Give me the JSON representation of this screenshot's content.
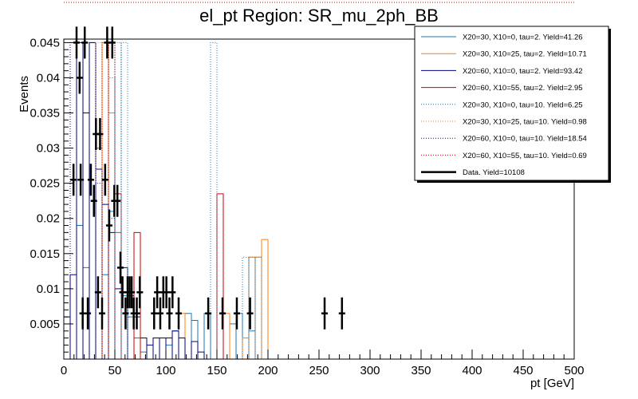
{
  "chart_data": {
    "type": "histogram",
    "title": "el_pt Region: SR_mu_2ph_BB",
    "xlabel": "pt [GeV]",
    "ylabel": "Events",
    "xlim": [
      0,
      500
    ],
    "ylim": [
      0,
      0.0455
    ],
    "bin_width": 6.25,
    "x_ticks": [
      "0",
      "50",
      "100",
      "150",
      "200",
      "250",
      "300",
      "350",
      "400",
      "450",
      "500"
    ],
    "y_ticks": [
      "0.005",
      "0.01",
      "0.015",
      "0.02",
      "0.025",
      "0.03",
      "0.035",
      "0.04",
      "0.045"
    ],
    "y_tick_values": [
      0.005,
      0.01,
      0.015,
      0.02,
      0.025,
      0.03,
      0.035,
      0.04,
      0.045
    ],
    "legend_position": "top-right",
    "series": [
      {
        "name": "X20=30, X10=0, tau=2. Yield=41.26",
        "color": "#1f77b4",
        "style": "solid",
        "points": [
          [
            12.5,
            0.019
          ],
          [
            18.75,
            0.013
          ],
          [
            31.25,
            0.03
          ],
          [
            37.5,
            0.012
          ],
          [
            43.75,
            0.021
          ],
          [
            50,
            0.018
          ],
          [
            56.25,
            0.009
          ],
          [
            62.5,
            0.006
          ],
          [
            68.75,
            0.003
          ],
          [
            75,
            0.001
          ],
          [
            100,
            0.002
          ],
          [
            106.25,
            0.004
          ],
          [
            118.75,
            0.0065
          ],
          [
            125,
            0.0055
          ],
          [
            137.5,
            0.0065
          ],
          [
            162.5,
            0.005
          ],
          [
            168.75,
            0.0065
          ],
          [
            181.25,
            0.004
          ]
        ]
      },
      {
        "name": "X20=30, X10=25, tau=2. Yield=10.71",
        "color": "#ff7f0e",
        "style": "solid",
        "points": [
          [
            37.5,
            0.045
          ],
          [
            43.75,
            0.035
          ],
          [
            112.5,
            0.0065
          ],
          [
            156.25,
            0.0065
          ],
          [
            175,
            0.003
          ],
          [
            181.25,
            0.0145
          ],
          [
            187.5,
            0.0145
          ],
          [
            193.75,
            0.017
          ]
        ]
      },
      {
        "name": "X20=60, X10=0, tau=2. Yield=93.42",
        "color": "#000080",
        "style": "solid",
        "points": [
          [
            0,
            0.006
          ],
          [
            6.25,
            0.012
          ],
          [
            12.5,
            0.045
          ],
          [
            18.75,
            0.035
          ],
          [
            25,
            0.045
          ],
          [
            31.25,
            0.027
          ],
          [
            37.5,
            0.022
          ],
          [
            43.75,
            0.018
          ],
          [
            50,
            0.01
          ],
          [
            56.25,
            0.013
          ],
          [
            62.5,
            0.009
          ],
          [
            68.75,
            0.006
          ],
          [
            75,
            0.003
          ],
          [
            81.25,
            0.002
          ],
          [
            87.5,
            0.003
          ],
          [
            93.75,
            0.003
          ],
          [
            100,
            0.003
          ],
          [
            106.25,
            0.004
          ],
          [
            112.5,
            0.003
          ],
          [
            125,
            0.0025
          ],
          [
            131.25,
            0.001
          ]
        ]
      },
      {
        "name": "X20=60, X10=55, tau=2. Yield=2.95",
        "color": "#cc0000",
        "style": "solid",
        "points": [
          [
            50,
            0.0235
          ],
          [
            68.75,
            0.018
          ],
          [
            150,
            0.0235
          ]
        ]
      },
      {
        "name": "X20=30, X10=0, tau=10. Yield=6.25",
        "color": "#1f77b4",
        "style": "dotted",
        "points": [
          [
            43.75,
            0.04
          ],
          [
            50,
            0.045
          ],
          [
            56.25,
            0.045
          ],
          [
            143.75,
            0.045
          ],
          [
            175,
            0.0145
          ],
          [
            181.25,
            0.0145
          ],
          [
            187.5,
            0.0145
          ]
        ]
      },
      {
        "name": "X20=30, X10=25, tau=10. Yield=0.98",
        "color": "#ff7f0e",
        "style": "dotted",
        "points": [
          [
            31.25,
            0.045
          ],
          [
            37.5,
            0.045
          ]
        ]
      },
      {
        "name": "X20=60, X10=0, tau=10. Yield=18.54",
        "color": "#000080",
        "style": "dotted",
        "points": [
          [
            6.25,
            0.045
          ],
          [
            12.5,
            0.045
          ],
          [
            18.75,
            0.045
          ],
          [
            25,
            0.045
          ],
          [
            31.25,
            0.025
          ],
          [
            37.5,
            0.045
          ],
          [
            43.75,
            0.02
          ]
        ]
      },
      {
        "name": "X20=60, X10=55, tau=10. Yield=0.69",
        "color": "#cc0000",
        "style": "dotted",
        "points": [
          [
            37.5,
            0.045
          ],
          [
            43.75,
            0.045
          ]
        ]
      }
    ],
    "data_series": {
      "name": "Data. Yield=10108",
      "color": "#000000",
      "points": [
        [
          9.5,
          0.0255
        ],
        [
          12.5,
          0.045
        ],
        [
          15.5,
          0.04
        ],
        [
          16.5,
          0.0255
        ],
        [
          18.5,
          0.0065
        ],
        [
          20.5,
          0.045
        ],
        [
          23.5,
          0.0065
        ],
        [
          26.5,
          0.0255
        ],
        [
          29.5,
          0.0225
        ],
        [
          31.5,
          0.032
        ],
        [
          33.5,
          0.0095
        ],
        [
          35.5,
          0.032
        ],
        [
          37.5,
          0.0065
        ],
        [
          40.5,
          0.0255
        ],
        [
          42.5,
          0.045
        ],
        [
          44.5,
          0.019
        ],
        [
          47.5,
          0.045
        ],
        [
          49.5,
          0.0225
        ],
        [
          52.5,
          0.0225
        ],
        [
          55.5,
          0.013
        ],
        [
          57.5,
          0.0095
        ],
        [
          60.5,
          0.0065
        ],
        [
          62.5,
          0.0095
        ],
        [
          64.5,
          0.0095
        ],
        [
          66.5,
          0.0095
        ],
        [
          68.5,
          0.0065
        ],
        [
          71.5,
          0.0065
        ],
        [
          74.5,
          0.0095
        ],
        [
          88.5,
          0.0065
        ],
        [
          91.5,
          0.0095
        ],
        [
          94.5,
          0.0065
        ],
        [
          97.5,
          0.0095
        ],
        [
          100.5,
          0.0095
        ],
        [
          103.5,
          0.0065
        ],
        [
          106.5,
          0.0095
        ],
        [
          112.5,
          0.0065
        ],
        [
          141.5,
          0.0065
        ],
        [
          155.5,
          0.0065
        ],
        [
          169.5,
          0.0065
        ],
        [
          182.5,
          0.0065
        ],
        [
          255.5,
          0.0065
        ],
        [
          272.5,
          0.0065
        ]
      ]
    }
  }
}
